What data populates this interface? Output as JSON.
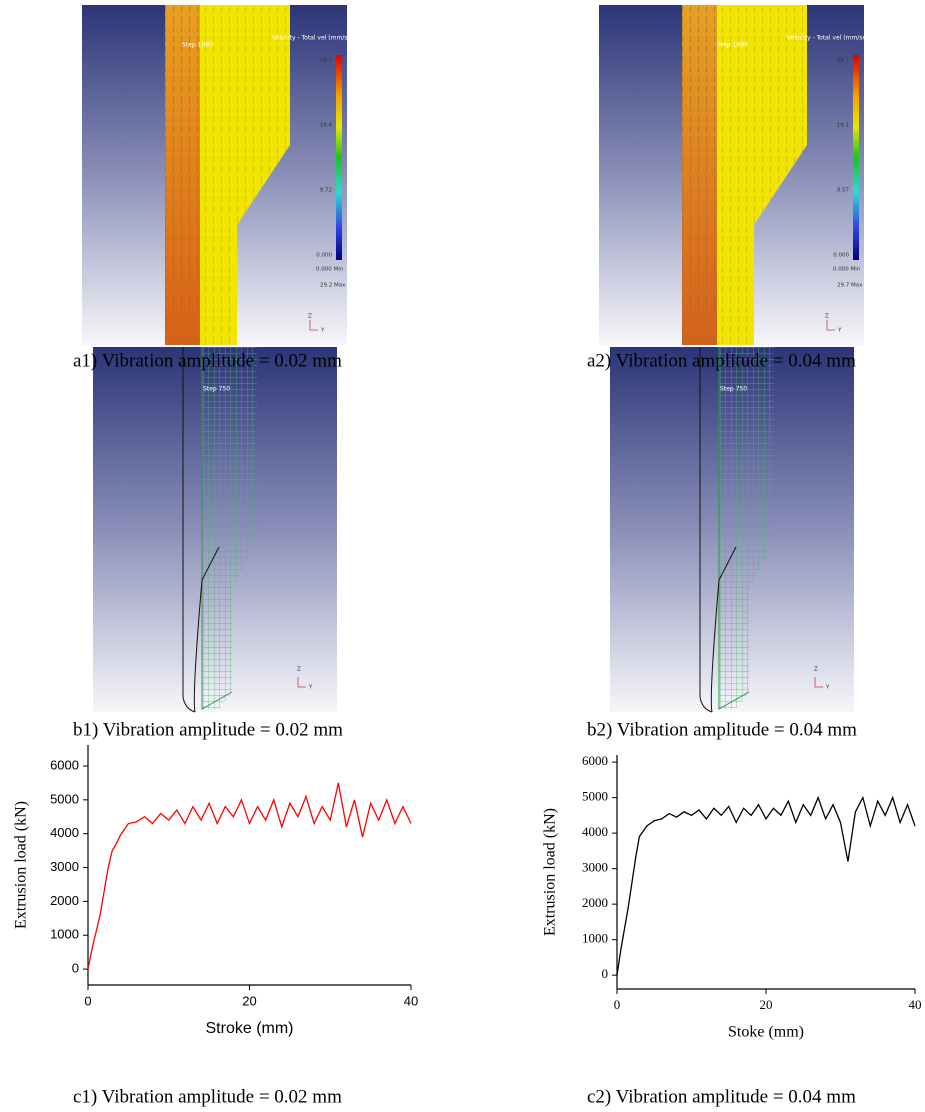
{
  "panels": [
    {
      "step": "Step 1090",
      "legend_title": "Velocity - Total vel (mm/sec)",
      "legend_ticks": [
        "29.1",
        "19.4",
        "9.72",
        "0.000"
      ],
      "min": "0.000  Min",
      "max": "29.2  Max",
      "axis_z": "Z",
      "axis_y": "Y"
    },
    {
      "step": "Step 1090",
      "legend_title": "Velocity - Total vel (mm/sec)",
      "legend_ticks": [
        "28.7",
        "19.1",
        "9.57",
        "0.000"
      ],
      "min": "0.000  Min",
      "max": "29.7  Max",
      "axis_z": "Z",
      "axis_y": "Y"
    },
    {
      "step": "Step 750",
      "axis_z": "Z",
      "axis_y": "Y"
    },
    {
      "step": "Step 750",
      "axis_z": "Z",
      "axis_y": "Y"
    }
  ],
  "captions": [
    "a1) Vibration amplitude = 0.02 mm",
    "a2) Vibration amplitude = 0.04 mm",
    "b1) Vibration amplitude = 0.02 mm",
    "b2) Vibration amplitude = 0.04 mm",
    "c1) Vibration amplitude = 0.02 mm",
    "c2) Vibration amplitude = 0.04 mm"
  ],
  "chart_data": [
    {
      "type": "line",
      "x_label": "Stroke (mm)",
      "y_label": "Extrusion load (kN)",
      "x": [
        0,
        0.5,
        1,
        1.5,
        2,
        2.5,
        3,
        3.5,
        4,
        5,
        6,
        7,
        8,
        9,
        10,
        11,
        12,
        13,
        14,
        15,
        16,
        17,
        18,
        19,
        20,
        21,
        22,
        23,
        24,
        25,
        26,
        27,
        28,
        29,
        30,
        31,
        32,
        33,
        34,
        35,
        36,
        37,
        38,
        39,
        40
      ],
      "series": [
        {
          "color": "#ff0000",
          "values": [
            0,
            600,
            1100,
            1600,
            2300,
            3000,
            3500,
            3700,
            3950,
            4300,
            4350,
            4500,
            4300,
            4600,
            4400,
            4700,
            4300,
            4800,
            4400,
            4900,
            4300,
            4800,
            4500,
            5000,
            4300,
            4800,
            4400,
            5000,
            4200,
            4900,
            4500,
            5100,
            4300,
            4800,
            4400,
            5500,
            4200,
            5000,
            3900,
            4900,
            4400,
            5000,
            4300,
            4800,
            4300
          ]
        }
      ],
      "xlim": [
        0,
        40
      ],
      "ylim": [
        -470,
        6620
      ],
      "xticks": [
        0,
        20,
        40
      ],
      "yticks": [
        0,
        1000,
        2000,
        3000,
        4000,
        5000,
        6000
      ]
    },
    {
      "type": "line",
      "x_label": "Stoke (mm)",
      "y_label": "Extrusion load (kN)",
      "x": [
        0,
        0.5,
        1,
        1.5,
        2,
        2.5,
        3,
        3.5,
        4,
        5,
        6,
        7,
        8,
        9,
        10,
        11,
        12,
        13,
        14,
        15,
        16,
        17,
        18,
        19,
        20,
        21,
        22,
        23,
        24,
        25,
        26,
        27,
        28,
        29,
        30,
        31,
        32,
        33,
        34,
        35,
        36,
        37,
        38,
        39,
        40
      ],
      "series": [
        {
          "color": "#000000",
          "values": [
            0,
            700,
            1300,
            1900,
            2600,
            3300,
            3900,
            4050,
            4200,
            4350,
            4400,
            4550,
            4450,
            4600,
            4500,
            4650,
            4400,
            4700,
            4500,
            4750,
            4300,
            4700,
            4500,
            4800,
            4400,
            4700,
            4500,
            4900,
            4300,
            4800,
            4500,
            5000,
            4400,
            4800,
            4300,
            3200,
            4600,
            5000,
            4200,
            4900,
            4500,
            5000,
            4300,
            4800,
            4200
          ]
        }
      ],
      "xlim": [
        0,
        40
      ],
      "ylim": [
        -390,
        6200
      ],
      "xticks": [
        0,
        20,
        40
      ],
      "yticks": [
        0,
        1000,
        2000,
        3000,
        4000,
        5000,
        6000
      ]
    }
  ]
}
